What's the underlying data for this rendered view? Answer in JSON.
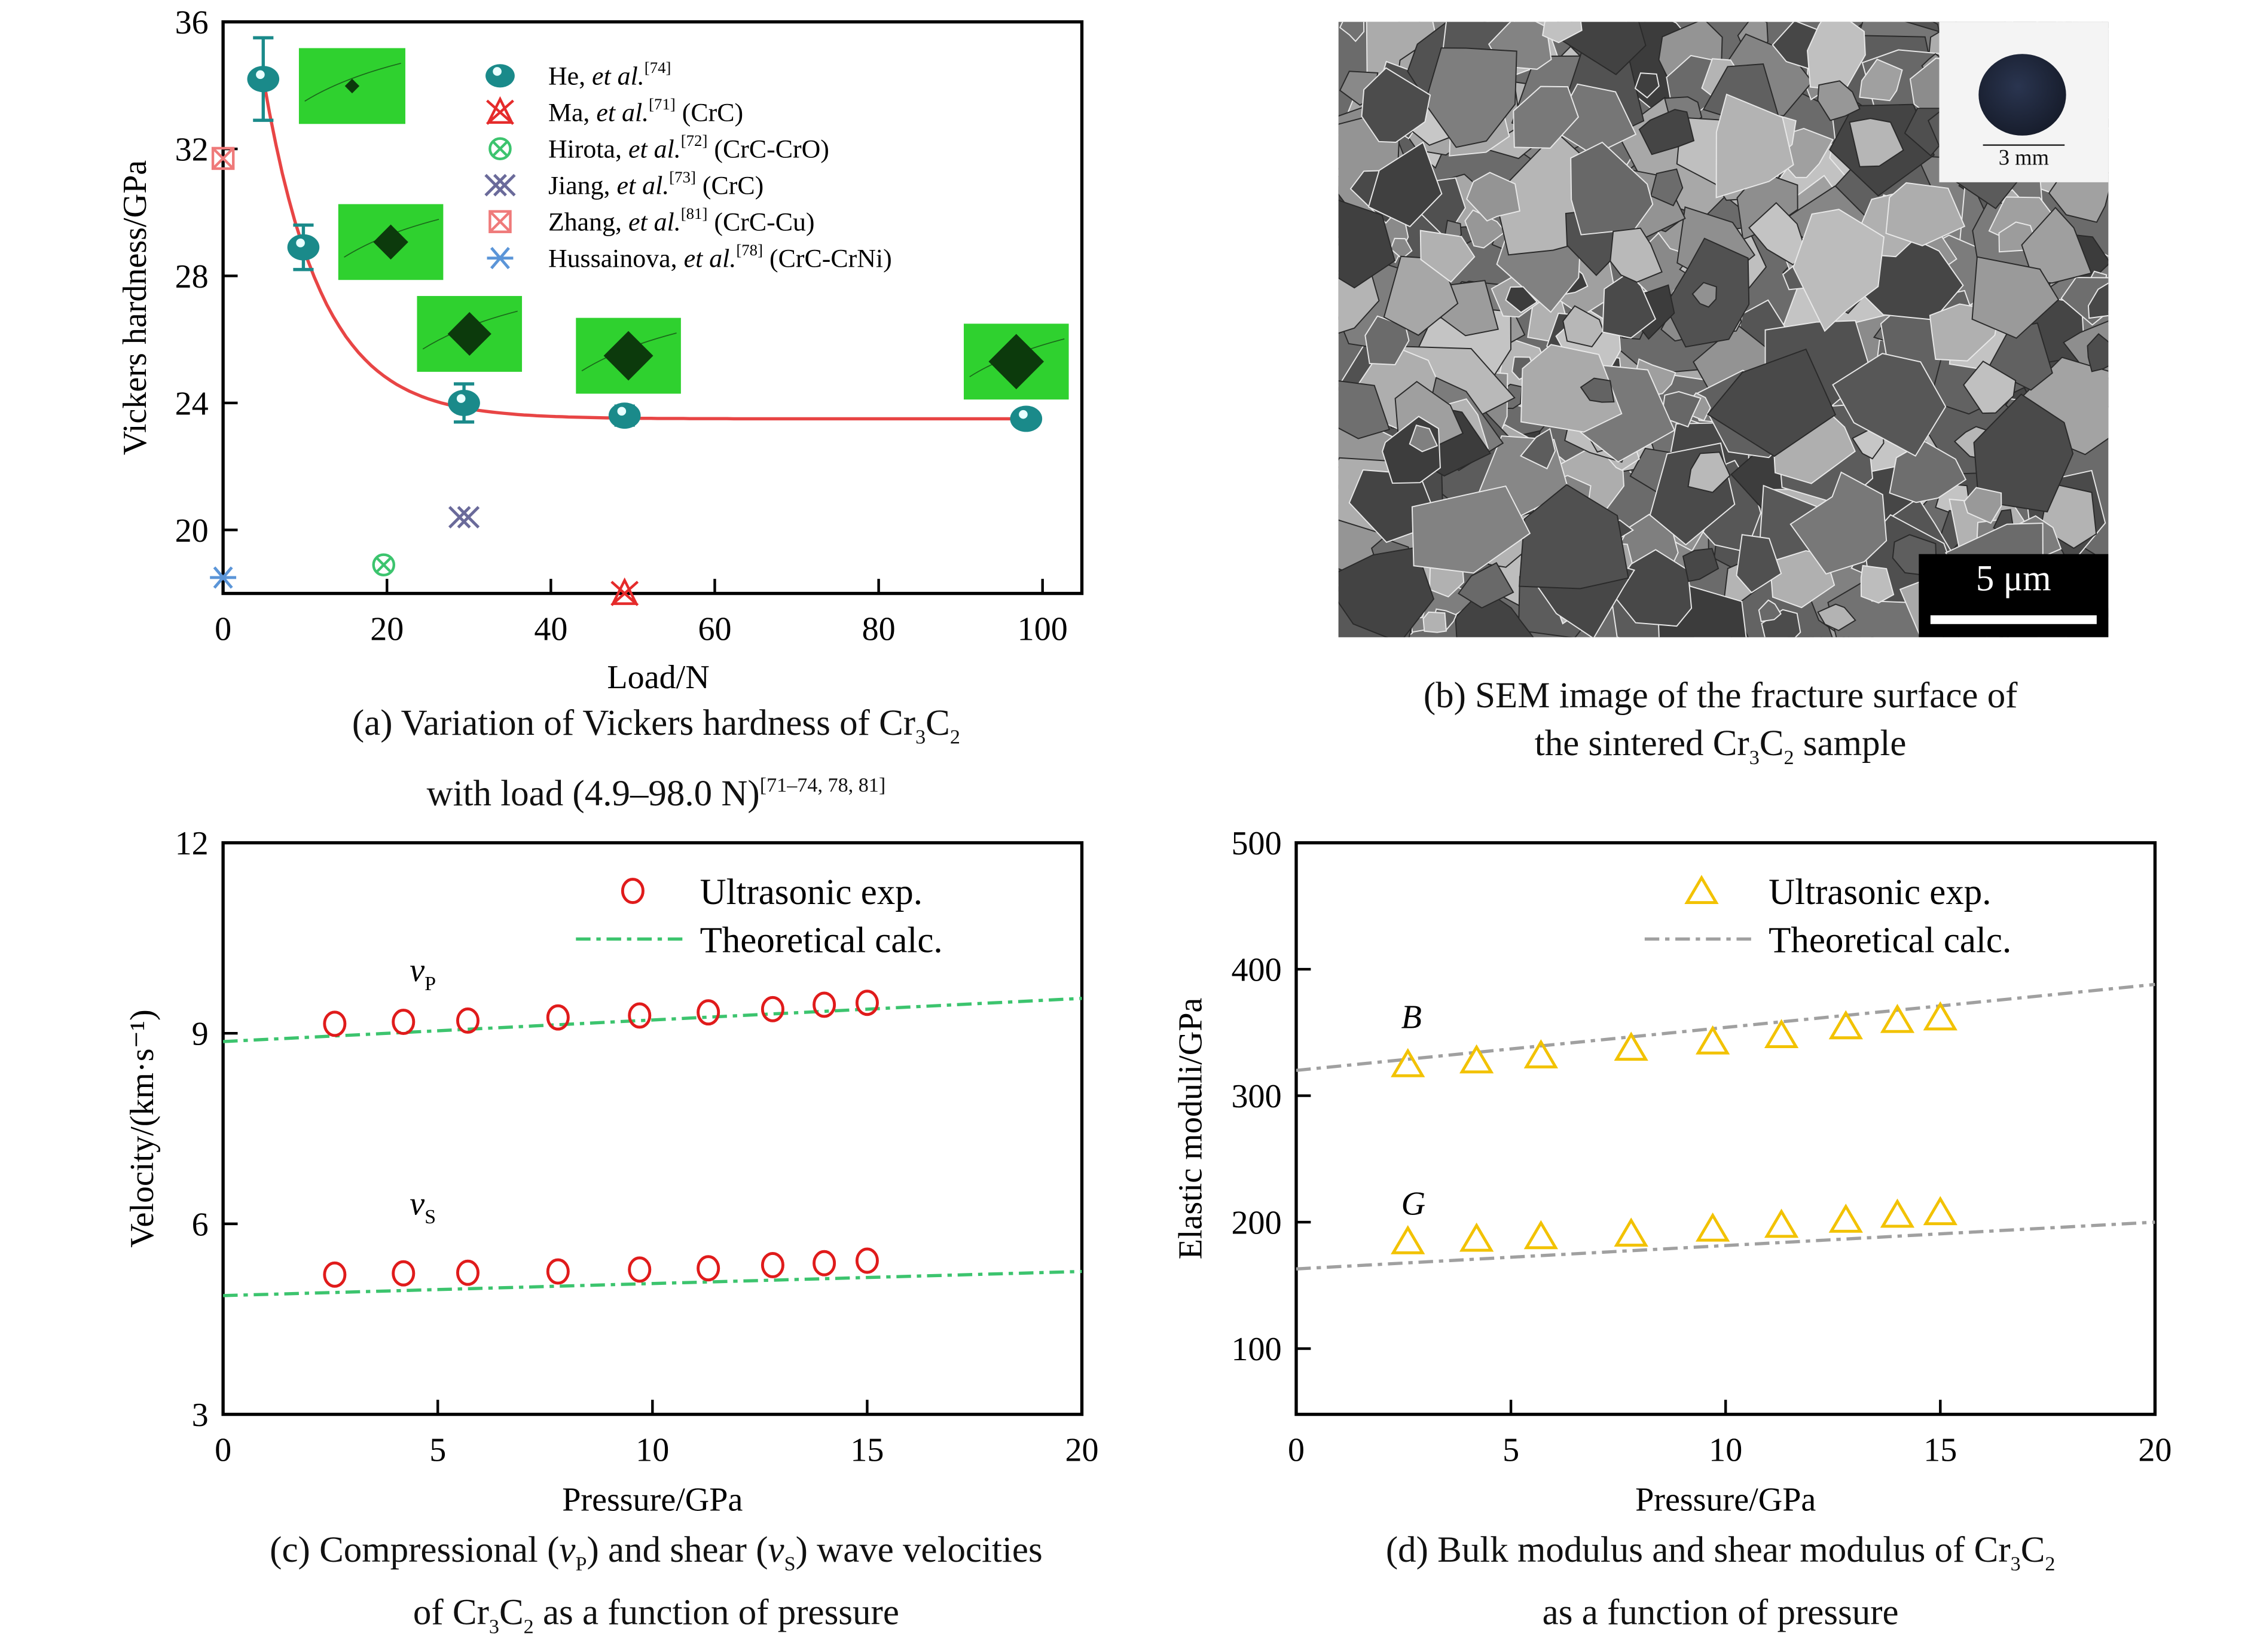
{
  "chart_data": [
    {
      "id": "a",
      "type": "scatter",
      "xlabel": "Load/N",
      "ylabel": "Vickers hardness/GPa",
      "xlim": [
        0,
        104.8
      ],
      "ylim": [
        18,
        36
      ],
      "xticks": [
        0,
        20,
        40,
        60,
        80,
        100
      ],
      "yticks": [
        20,
        24,
        28,
        32,
        36
      ],
      "series": [
        {
          "name": "He",
          "ref": "[74]",
          "note": "",
          "marker": "sphere",
          "color": "#1a8a8a",
          "points": [
            [
              4.9,
              34.2,
              1.3
            ],
            [
              9.8,
              28.9,
              0.7
            ],
            [
              29.4,
              24.0,
              0.6
            ],
            [
              49,
              23.6,
              0.3
            ],
            [
              98,
              23.5,
              0.2
            ]
          ]
        },
        {
          "name": "Ma",
          "ref": "[71]",
          "note": "(CrC)",
          "marker": "xtri",
          "color": "#e52b2b",
          "points": [
            [
              49,
              18.0
            ]
          ]
        },
        {
          "name": "Hirota",
          "ref": "[72]",
          "note": "(CrC-CrO)",
          "marker": "circx",
          "color": "#3cc46e",
          "points": [
            [
              19.6,
              18.9
            ]
          ]
        },
        {
          "name": "Jiang",
          "ref": "[73]",
          "note": "(CrC)",
          "marker": "dx",
          "color": "#6a6a9a",
          "points": [
            [
              29.4,
              20.4
            ]
          ]
        },
        {
          "name": "Zhang",
          "ref": "[81]",
          "note": "(CrC-Cu)",
          "marker": "sqx",
          "color": "#ef7a7a",
          "points": [
            [
              0,
              31.7
            ]
          ]
        },
        {
          "name": "Hussainova",
          "ref": "[78]",
          "note": "(CrC-CrNi)",
          "marker": "star",
          "color": "#5b95d8",
          "points": [
            [
              0,
              18.5
            ]
          ]
        }
      ],
      "fit": {
        "y0": 23.5,
        "A": 21.4,
        "t": 7.1,
        "xrange": [
          4.9,
          98
        ],
        "color": "#e84545"
      },
      "etal": "et al."
    },
    {
      "id": "c",
      "type": "scatter",
      "xlabel": "Pressure/GPa",
      "ylabel": "Velocity/(km·s⁻¹)",
      "xlim": [
        0,
        20
      ],
      "ylim": [
        3,
        12
      ],
      "xticks": [
        0,
        5,
        10,
        15,
        20
      ],
      "yticks": [
        3,
        6,
        9,
        12
      ],
      "x": [
        2.6,
        4.2,
        5.7,
        7.8,
        9.7,
        11.3,
        12.8,
        14,
        15
      ],
      "series": [
        {
          "name": "vP",
          "label": "v",
          "sub": "P",
          "values": [
            9.15,
            9.18,
            9.2,
            9.25,
            9.28,
            9.33,
            9.38,
            9.45,
            9.48
          ],
          "theory": [
            [
              0,
              8.87
            ],
            [
              20,
              9.55
            ]
          ]
        },
        {
          "name": "vS",
          "label": "v",
          "sub": "S",
          "values": [
            5.2,
            5.22,
            5.23,
            5.25,
            5.28,
            5.3,
            5.35,
            5.38,
            5.42
          ],
          "theory": [
            [
              0,
              4.87
            ],
            [
              20,
              5.25
            ]
          ]
        }
      ],
      "legend": [
        "Ultrasonic exp.",
        "Theoretical calc."
      ],
      "marker_color": "#e01b1b",
      "line_color": "#3cc46e"
    },
    {
      "id": "d",
      "type": "scatter",
      "xlabel": "Pressure/GPa",
      "ylabel": "Elastic moduli/GPa",
      "xlim": [
        0,
        20
      ],
      "ylim": [
        48,
        500
      ],
      "xticks": [
        0,
        5,
        10,
        15,
        20
      ],
      "yticks": [
        100,
        200,
        300,
        400,
        500
      ],
      "x": [
        2.6,
        4.2,
        5.7,
        7.8,
        9.7,
        11.3,
        12.8,
        14,
        15
      ],
      "series": [
        {
          "name": "B",
          "label": "B",
          "values": [
            325,
            328,
            332,
            338,
            343,
            348,
            355,
            360,
            362
          ],
          "theory": [
            [
              0,
              320
            ],
            [
              20,
              388
            ]
          ]
        },
        {
          "name": "G",
          "label": "G",
          "values": [
            185,
            187,
            189,
            191,
            195,
            198,
            202,
            206,
            208
          ],
          "theory": [
            [
              0,
              163
            ],
            [
              20,
              200
            ]
          ]
        }
      ],
      "legend": [
        "Ultrasonic exp.",
        "Theoretical calc."
      ],
      "marker_color": "#f2c200",
      "line_color": "#a0a0a0"
    }
  ],
  "sem": {
    "scale_bar": "5 μm",
    "inset_scale": "3 mm"
  },
  "captions": {
    "a": [
      [
        {
          "t": "(a) Variation of Vickers hardness of Cr"
        },
        {
          "t": "3",
          "s": "sub"
        },
        {
          "t": "C"
        },
        {
          "t": "2",
          "s": "sub"
        }
      ],
      [
        {
          "t": "with load (4.9–98.0 N)"
        },
        {
          "t": "[71–74, 78, 81]",
          "s": "sup"
        }
      ]
    ],
    "b": [
      [
        {
          "t": "(b) SEM image of the fracture surface of"
        }
      ],
      [
        {
          "t": "the sintered Cr"
        },
        {
          "t": "3",
          "s": "sub"
        },
        {
          "t": "C"
        },
        {
          "t": "2",
          "s": "sub"
        },
        {
          "t": " sample"
        }
      ]
    ],
    "c": [
      [
        {
          "t": "(c) Compressional ("
        },
        {
          "t": "v",
          "s": "i"
        },
        {
          "t": "P",
          "s": "sub"
        },
        {
          "t": ") and shear ("
        },
        {
          "t": "v",
          "s": "i"
        },
        {
          "t": "S",
          "s": "sub"
        },
        {
          "t": ") wave velocities"
        }
      ],
      [
        {
          "t": "of Cr"
        },
        {
          "t": "3",
          "s": "sub"
        },
        {
          "t": "C"
        },
        {
          "t": "2",
          "s": "sub"
        },
        {
          "t": " as a function of pressure"
        }
      ]
    ],
    "d": [
      [
        {
          "t": "(d) Bulk modulus and shear modulus of Cr"
        },
        {
          "t": "3",
          "s": "sub"
        },
        {
          "t": "C"
        },
        {
          "t": "2",
          "s": "sub"
        }
      ],
      [
        {
          "t": "as a function of pressure"
        }
      ]
    ]
  }
}
